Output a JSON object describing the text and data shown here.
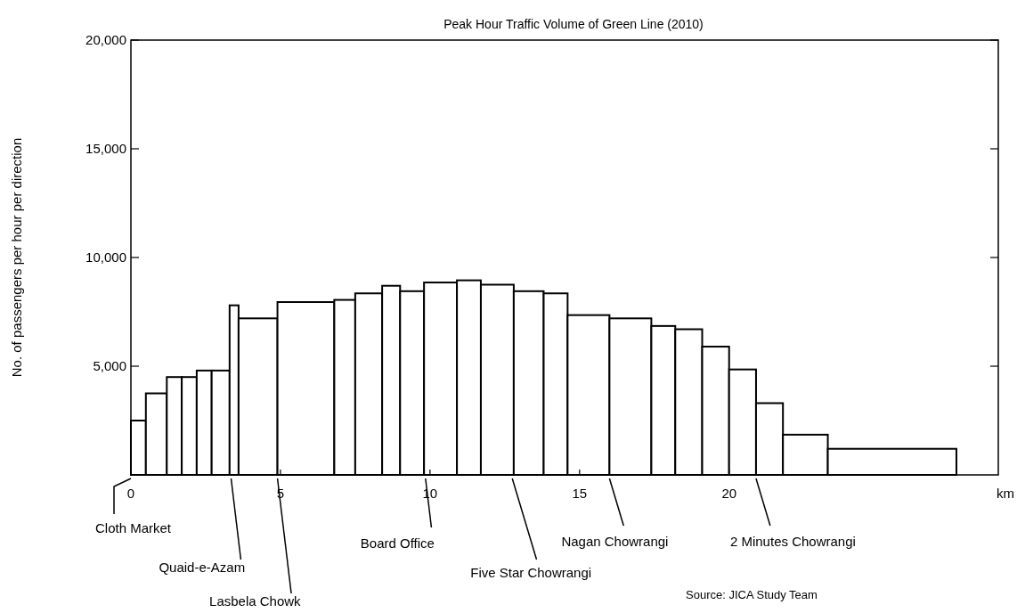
{
  "chart_data": {
    "type": "histogram",
    "title": "Peak Hour Traffic Volume of Green Line (2010)",
    "xlabel": "km",
    "ylabel": "No. of passengers per hour per direction",
    "bins": [
      0,
      0.5,
      1.2,
      1.7,
      2.2,
      2.7,
      3.3,
      3.6,
      4.9,
      6.8,
      7.5,
      8.4,
      9.0,
      9.8,
      10.9,
      11.7,
      12.8,
      13.8,
      14.6,
      16.0,
      17.4,
      18.2,
      19.1,
      20.0,
      20.9,
      21.8,
      23.3,
      27.6
    ],
    "values": [
      2500,
      3750,
      4500,
      4500,
      4800,
      4800,
      7800,
      7200,
      7950,
      8050,
      8350,
      8700,
      8450,
      8850,
      8950,
      8750,
      8450,
      8350,
      7350,
      7200,
      6850,
      6700,
      5900,
      4850,
      3300,
      1850,
      1200
    ],
    "color": "#ffffff",
    "xlim": [
      0,
      29
    ],
    "xticks": [
      0,
      5,
      10,
      15,
      20
    ],
    "ylim": [
      0,
      20000
    ],
    "yticks": [
      {
        "value": 5000,
        "label": "5,000"
      },
      {
        "value": 10000,
        "label": "10,000"
      },
      {
        "value": 15000,
        "label": "15,000"
      },
      {
        "value": 20000,
        "label": "20,000"
      }
    ],
    "grid": false,
    "annotations": [
      {
        "text": "Cloth Market",
        "x": 0,
        "y": 0
      },
      {
        "text": "Quaid-e-Azam",
        "x": 3.35,
        "y": 0
      },
      {
        "text": "Lasbela Chowk",
        "x": 4.9,
        "y": 0
      },
      {
        "text": "Board Office",
        "x": 9.85,
        "y": 0
      },
      {
        "text": "Five Star Chowrangi",
        "x": 12.75,
        "y": 0
      },
      {
        "text": "Nagan Chowrangi",
        "x": 16.0,
        "y": 0
      },
      {
        "text": "2 Minutes Chowrangi",
        "x": 20.9,
        "y": 0
      },
      "Source: JICA Study Team"
    ]
  }
}
